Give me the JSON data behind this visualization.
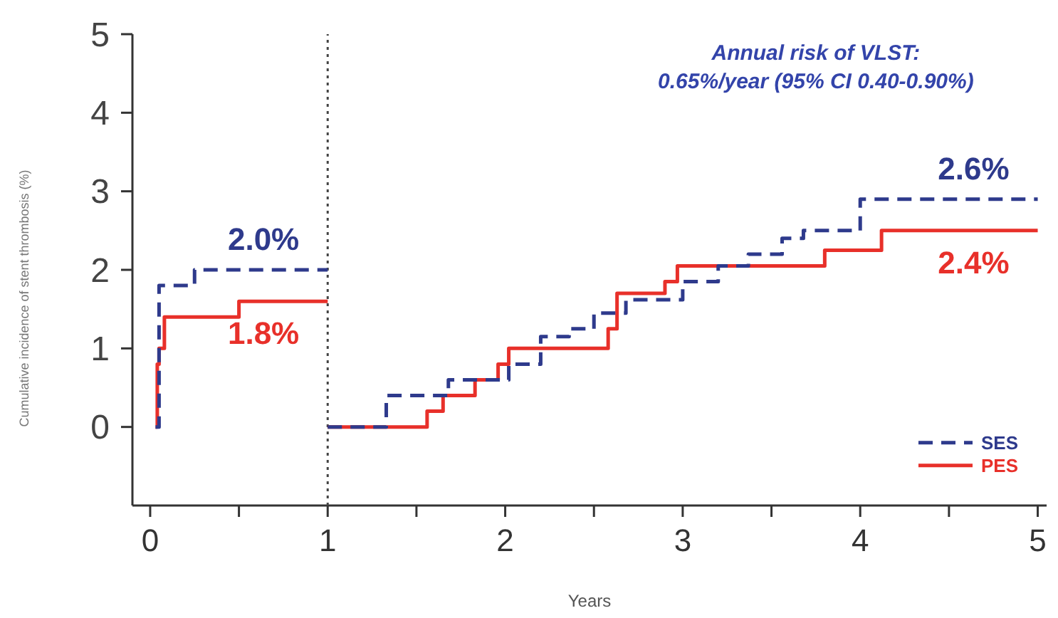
{
  "chart_data": {
    "type": "step",
    "xlabel": "Years",
    "ylabel": "Cumulative incidence of stent thrombosis (%)",
    "xlim": [
      -0.1,
      5.05
    ],
    "ylim": [
      -1,
      5
    ],
    "xticks": [
      0,
      {
        "value": 0.5,
        "label": null
      },
      1,
      {
        "value": 1.5,
        "label": null
      },
      2,
      {
        "value": 2.5,
        "label": null
      },
      3,
      {
        "value": 3.5,
        "label": null
      },
      4,
      {
        "value": 4.5,
        "label": null
      },
      5
    ],
    "yticks": [
      0,
      1,
      2,
      3,
      4,
      5
    ],
    "grid": false,
    "legend": "bottom right",
    "series": [
      {
        "color": "#2e3a8c",
        "line_style": "dashed",
        "x": [
          0.03,
          0.05,
          0.25,
          1.0
        ],
        "values": [
          0,
          1.8,
          2.0,
          2.0
        ]
      },
      {
        "color": "#e8302a",
        "line_style": "solid",
        "x": [
          0.03,
          0.04,
          0.05,
          0.08,
          0.5,
          1.0
        ],
        "values": [
          0,
          0.8,
          1.0,
          1.4,
          1.6,
          1.6
        ]
      },
      {
        "name": "SES",
        "color": "#2e3a8c",
        "line_style": "dashed",
        "x": [
          1.0,
          1.33,
          1.68,
          2.02,
          2.2,
          2.36,
          2.5,
          2.68,
          3.0,
          3.2,
          3.37,
          3.56,
          3.68,
          4.0,
          5.0
        ],
        "values": [
          0,
          0.4,
          0.6,
          0.8,
          1.15,
          1.25,
          1.45,
          1.62,
          1.85,
          2.05,
          2.2,
          2.4,
          2.5,
          2.9,
          2.9
        ]
      },
      {
        "name": "PES",
        "color": "#e8302a",
        "line_style": "solid",
        "x": [
          1.0,
          1.56,
          1.65,
          1.83,
          1.96,
          2.02,
          2.58,
          2.63,
          2.67,
          2.9,
          2.97,
          3.8,
          4.12,
          5.0
        ],
        "values": [
          0,
          0.2,
          0.4,
          0.6,
          0.8,
          1.0,
          1.25,
          1.7,
          1.7,
          1.85,
          2.05,
          2.25,
          2.5,
          2.5
        ]
      }
    ],
    "ref_lines": [
      {
        "axis": "x",
        "value": 1,
        "color": "#444444",
        "line_style": "dotted"
      }
    ],
    "annotations": [
      "Annual risk of VLST:\n0.65%/year (95% CI 0.40-0.90%)",
      "2.0%",
      "1.8%",
      "2.6%",
      "2.4%"
    ]
  }
}
